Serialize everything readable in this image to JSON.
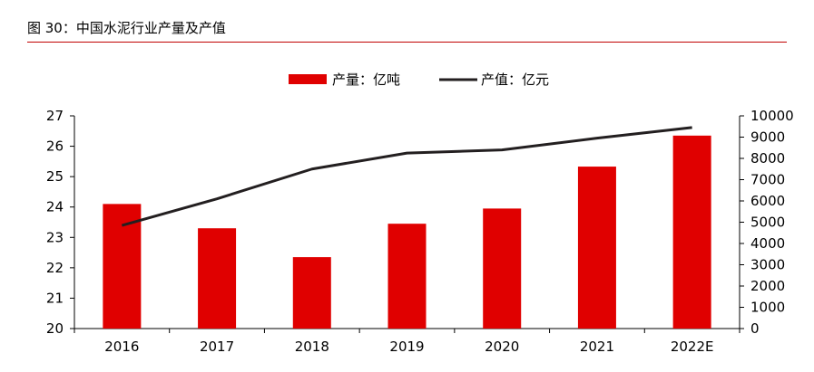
{
  "figure_title": "图 30：中国水泥行业产量及产值",
  "colors": {
    "bar": "#e00000",
    "line": "#231f20",
    "title_rule": "#c00000"
  },
  "chart_data": {
    "type": "bar+line",
    "categories": [
      "2016",
      "2017",
      "2018",
      "2019",
      "2020",
      "2021",
      "2022E"
    ],
    "series": [
      {
        "name": "产量：亿吨",
        "type": "bar",
        "axis": "left",
        "values": [
          24.1,
          23.3,
          22.35,
          23.45,
          23.95,
          25.33,
          26.35
        ]
      },
      {
        "name": "产值：亿元",
        "type": "line",
        "axis": "right",
        "values": [
          4850,
          6100,
          7500,
          8250,
          8400,
          8950,
          9450
        ]
      }
    ],
    "y_left": {
      "min": 20,
      "max": 27,
      "ticks": [
        20,
        21,
        22,
        23,
        24,
        25,
        26,
        27
      ]
    },
    "y_right": {
      "min": 0,
      "max": 10000,
      "ticks": [
        0,
        1000,
        2000,
        3000,
        4000,
        5000,
        6000,
        7000,
        8000,
        9000,
        10000
      ]
    },
    "legend_position": "top-center",
    "grid": false
  }
}
